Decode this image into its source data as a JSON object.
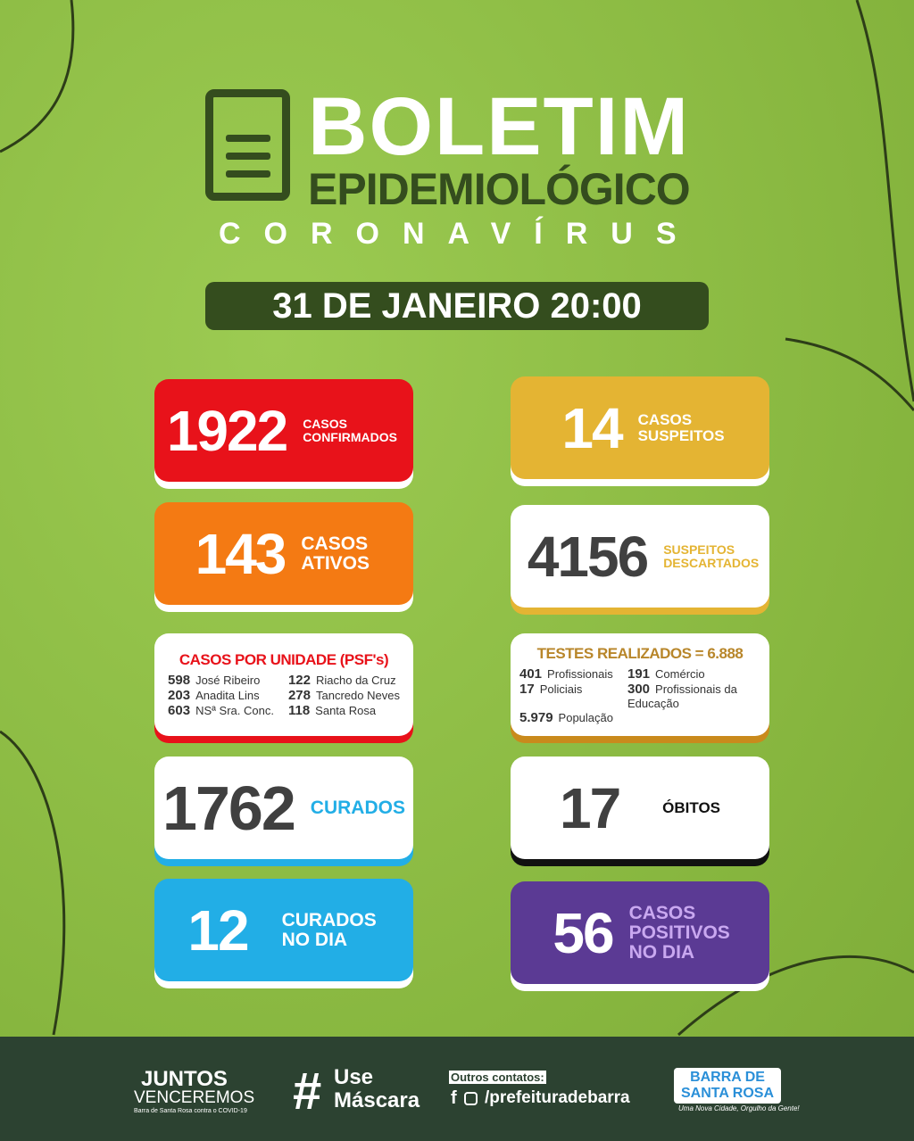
{
  "header": {
    "title": "BOLETIM",
    "subtitle": "EPIDEMIOLÓGICO",
    "topic": "CORONAVÍRUS",
    "date": "31 DE JANEIRO 20:00"
  },
  "colors": {
    "background": "#8dbd44",
    "dark_green": "#344d1e",
    "red": "#e8121a",
    "yellow": "#e4b433",
    "orange": "#f47a13",
    "blue": "#22aee6",
    "purple": "#5b3a94"
  },
  "cards": {
    "confirmados": {
      "value": "1922",
      "label": "CASOS CONFIRMADOS"
    },
    "suspeitos": {
      "value": "14",
      "label": "CASOS SUSPEITOS"
    },
    "ativos": {
      "value": "143",
      "label": "CASOS ATIVOS"
    },
    "descartados": {
      "value": "4156",
      "label": "SUSPEITOS DESCARTADOS"
    },
    "curados": {
      "value": "1762",
      "label": "CURADOS"
    },
    "obitos": {
      "value": "17",
      "label": "ÓBITOS"
    },
    "curados_dia": {
      "value": "12",
      "label": "CURADOS NO DIA"
    },
    "positivos_dia": {
      "value": "56",
      "label": "CASOS POSITIVOS NO DIA"
    }
  },
  "unidades": {
    "title": "CASOS POR UNIDADE (PSF's)",
    "items": [
      {
        "n": "598",
        "name": "José Ribeiro"
      },
      {
        "n": "122",
        "name": "Riacho da Cruz"
      },
      {
        "n": "203",
        "name": "Anadita Lins"
      },
      {
        "n": "278",
        "name": "Tancredo Neves"
      },
      {
        "n": "603",
        "name": "NSª Sra. Conc."
      },
      {
        "n": "118",
        "name": "Santa Rosa"
      }
    ]
  },
  "testes": {
    "title": "TESTES REALIZADOS = 6.888",
    "items": [
      {
        "n": "401",
        "name": "Profissionais"
      },
      {
        "n": "191",
        "name": "Comércio"
      },
      {
        "n": "17",
        "name": "Policiais"
      },
      {
        "n": "300",
        "name": "Profissionais da Educação"
      },
      {
        "n": "5.979",
        "name": "População"
      }
    ]
  },
  "footer": {
    "juntos": "JUNTOS",
    "venceremos": "VENCEREMOS",
    "juntos_sub": "Barra de Santa Rosa contra o COVID-19",
    "hashtag": "#",
    "use": "Use",
    "mascara": "Máscara",
    "contatos": "Outros contatos:",
    "handle": "/prefeituradebarra",
    "logo_text": "BARRA DE SANTA ROSA",
    "slogan": "Uma Nova Cidade, Orgulho da Gente!"
  }
}
